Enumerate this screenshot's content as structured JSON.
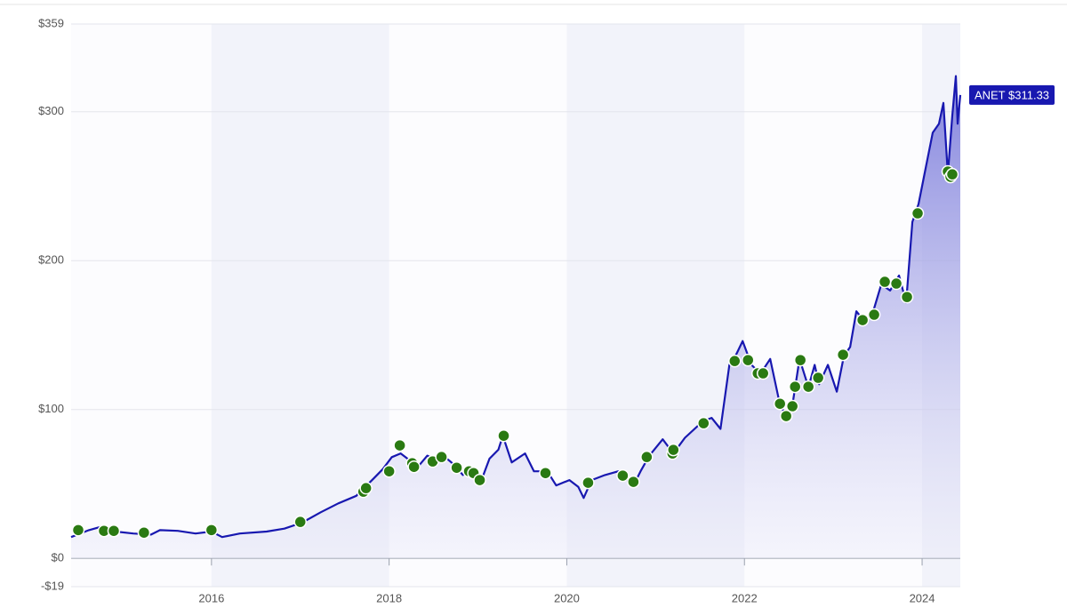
{
  "chart_data": {
    "type": "line",
    "xlim": [
      2014.42,
      2024.43
    ],
    "ylim": [
      -19,
      359
    ],
    "xticks": [
      2016,
      2018,
      2020,
      2022,
      2024
    ],
    "yticks": [
      {
        "value": -19,
        "label": "-$19"
      },
      {
        "value": 0,
        "label": "$0"
      },
      {
        "value": 100,
        "label": "$100"
      },
      {
        "value": 200,
        "label": "$200"
      },
      {
        "value": 300,
        "label": "$300"
      },
      {
        "value": 359,
        "label": "$359"
      }
    ],
    "grid": true,
    "x": [
      2014.42,
      2014.62,
      2014.77,
      2014.92,
      2015.12,
      2015.32,
      2015.42,
      2015.62,
      2015.82,
      2016.0,
      2016.12,
      2016.32,
      2016.62,
      2016.82,
      2017.02,
      2017.23,
      2017.43,
      2017.63,
      2017.73,
      2017.83,
      2017.93,
      2018.03,
      2018.13,
      2018.23,
      2018.33,
      2018.43,
      2018.53,
      2018.63,
      2018.73,
      2018.83,
      2018.93,
      2019.03,
      2019.13,
      2019.23,
      2019.28,
      2019.38,
      2019.53,
      2019.63,
      2019.78,
      2019.88,
      2020.03,
      2020.13,
      2020.19,
      2020.28,
      2020.43,
      2020.58,
      2020.68,
      2020.75,
      2020.83,
      2020.93,
      2021.08,
      2021.2,
      2021.33,
      2021.53,
      2021.63,
      2021.73,
      2021.83,
      2021.91,
      2021.98,
      2022.08,
      2022.18,
      2022.29,
      2022.39,
      2022.47,
      2022.54,
      2022.62,
      2022.72,
      2022.79,
      2022.84,
      2022.94,
      2023.04,
      2023.12,
      2023.19,
      2023.26,
      2023.34,
      2023.44,
      2023.54,
      2023.64,
      2023.74,
      2023.82,
      2023.89,
      2023.96,
      2024.04,
      2024.12,
      2024.19,
      2024.24,
      2024.29,
      2024.34,
      2024.38,
      2024.4,
      2024.43
    ],
    "series": [
      {
        "color": "#1818b0",
        "values": [
          14.3,
          19,
          21.5,
          18,
          16.7,
          16,
          19,
          18.5,
          16.7,
          18,
          14.3,
          16.7,
          18,
          20,
          24,
          31,
          37,
          42,
          48,
          54,
          60,
          68,
          70.5,
          66,
          62,
          69,
          66,
          68,
          63,
          56,
          58.5,
          51,
          67,
          73,
          82.4,
          64.5,
          70.5,
          58.5,
          58.5,
          49,
          52.6,
          48,
          40.6,
          52.6,
          56,
          58.5,
          52.6,
          49,
          58.5,
          69,
          80,
          70.5,
          81,
          92,
          94.4,
          87,
          130,
          137.4,
          146,
          130,
          124,
          134,
          106,
          94.4,
          103,
          134,
          115,
          130,
          117,
          130,
          112,
          136,
          142,
          166,
          160,
          164,
          184,
          180,
          190,
          172,
          226,
          238,
          262,
          286,
          292,
          306,
          258,
          297.5,
          324,
          292,
          311.3
        ]
      }
    ],
    "markers": {
      "color": "#2a7a12",
      "x": [
        2014.5,
        2014.79,
        2014.9,
        2015.24,
        2016.0,
        2017.0,
        2017.71,
        2017.74,
        2018.0,
        2018.12,
        2018.26,
        2018.28,
        2018.49,
        2018.59,
        2018.76,
        2018.9,
        2018.95,
        2019.02,
        2019.29,
        2019.76,
        2020.24,
        2020.63,
        2020.75,
        2020.9,
        2021.19,
        2021.2,
        2021.54,
        2021.89,
        2022.04,
        2022.15,
        2022.21,
        2022.4,
        2022.47,
        2022.54,
        2022.57,
        2022.63,
        2022.72,
        2022.83,
        2023.11,
        2023.33,
        2023.46,
        2023.58,
        2023.71,
        2023.83,
        2023.95,
        2024.29,
        2024.32,
        2024.34
      ],
      "values": [
        19,
        18.5,
        18.5,
        17.3,
        19,
        24.5,
        44.8,
        47.2,
        58.5,
        75.9,
        63.9,
        61.5,
        65.1,
        68.1,
        60.9,
        58.5,
        57.3,
        52.6,
        82.4,
        57.3,
        50.8,
        55.6,
        51.4,
        68.1,
        70.5,
        72.9,
        90.8,
        132.6,
        133.2,
        124.3,
        124.3,
        103.9,
        95.6,
        102.2,
        115.3,
        133.2,
        115.3,
        121.3,
        136.8,
        160.1,
        163.7,
        185.8,
        184.6,
        175.6,
        231.8,
        259.9,
        256.3,
        258
      ]
    },
    "annotation": {
      "text": "ANET $311.33",
      "value": 311.33
    }
  }
}
